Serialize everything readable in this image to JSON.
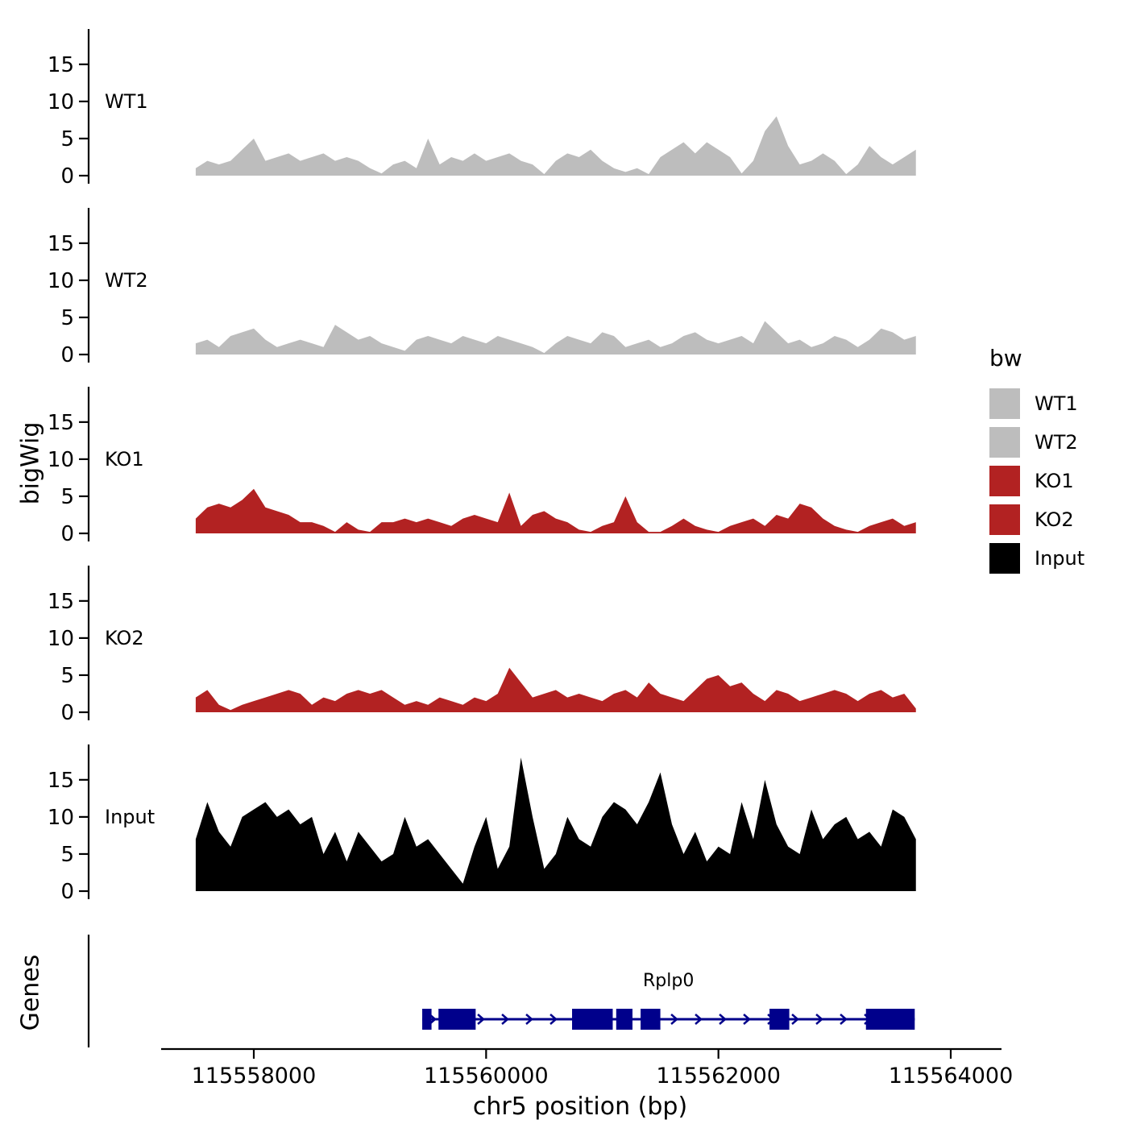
{
  "figure": {
    "y_axis_title": "bigWig",
    "genes_axis_title": "Genes",
    "legend": {
      "title": "bw",
      "entries": [
        {
          "label": "WT1",
          "color": "#BDBDBD"
        },
        {
          "label": "WT2",
          "color": "#BDBDBD"
        },
        {
          "label": "KO1",
          "color": "#B22222"
        },
        {
          "label": "KO2",
          "color": "#B22222"
        },
        {
          "label": "Input",
          "color": "#000000"
        }
      ]
    }
  },
  "chart_data": {
    "type": "area",
    "title": "",
    "xlabel": "chr5 position (bp)",
    "ylabel": "bigWig",
    "legend_position": "right",
    "grid": false,
    "x_axis": {
      "domain": [
        115556600,
        115564200
      ],
      "ticks": [
        115558000,
        115560000,
        115562000,
        115564000
      ],
      "tick_labels": [
        "115558000",
        "115560000",
        "115562000",
        "115564000"
      ]
    },
    "y_axis": {
      "domain": [
        0,
        19
      ],
      "ticks": [
        0,
        5,
        10,
        15
      ],
      "tick_labels": [
        "0",
        "5",
        "10",
        "15"
      ]
    },
    "x_start": 115557500,
    "x_step": 100,
    "series": [
      {
        "name": "WT1",
        "color": "#BDBDBD",
        "values": [
          1,
          2,
          1.5,
          2,
          3.5,
          5,
          2,
          2.5,
          3,
          2,
          2.5,
          3,
          2,
          2.5,
          2,
          1,
          0.3,
          1.5,
          2,
          1,
          5,
          1.5,
          2.5,
          2,
          3,
          2,
          2.5,
          3,
          2,
          1.5,
          0.2,
          2,
          3,
          2.5,
          3.5,
          2,
          1,
          0.5,
          1,
          0.2,
          2.5,
          3.5,
          4.5,
          3,
          4.5,
          3.5,
          2.5,
          0.3,
          2,
          6,
          8,
          4,
          1.5,
          2,
          3,
          2,
          0.2,
          1.5,
          4,
          2.5,
          1.5,
          2.5,
          3.5
        ]
      },
      {
        "name": "WT2",
        "color": "#BDBDBD",
        "values": [
          1.5,
          2,
          1,
          2.5,
          3,
          3.5,
          2,
          1,
          1.5,
          2,
          1.5,
          1,
          4,
          3,
          2,
          2.5,
          1.5,
          1,
          0.5,
          2,
          2.5,
          2,
          1.5,
          2.5,
          2,
          1.5,
          2.5,
          2,
          1.5,
          1,
          0.2,
          1.5,
          2.5,
          2,
          1.5,
          3,
          2.5,
          1,
          1.5,
          2,
          1,
          1.5,
          2.5,
          3,
          2,
          1.5,
          2,
          2.5,
          1.5,
          4.5,
          3,
          1.5,
          2,
          1,
          1.5,
          2.5,
          2,
          1,
          2,
          3.5,
          3,
          2,
          2.5
        ]
      },
      {
        "name": "KO1",
        "color": "#B22222",
        "values": [
          2,
          3.5,
          4,
          3.5,
          4.5,
          6,
          3.5,
          3,
          2.5,
          1.5,
          1.5,
          1,
          0.2,
          1.5,
          0.5,
          0.2,
          1.5,
          1.5,
          2,
          1.5,
          2,
          1.5,
          1,
          2,
          2.5,
          2,
          1.5,
          5.5,
          1,
          2.5,
          3,
          2,
          1.5,
          0.5,
          0.2,
          1,
          1.5,
          5,
          1.5,
          0.2,
          0.2,
          1,
          2,
          1,
          0.5,
          0.2,
          1,
          1.5,
          2,
          1,
          2.5,
          2,
          4,
          3.5,
          2,
          1,
          0.5,
          0.2,
          1,
          1.5,
          2,
          1,
          1.5
        ]
      },
      {
        "name": "KO2",
        "color": "#B22222",
        "values": [
          2,
          3,
          1,
          0.3,
          1,
          1.5,
          2,
          2.5,
          3,
          2.5,
          1,
          2,
          1.5,
          2.5,
          3,
          2.5,
          3,
          2,
          1,
          1.5,
          1,
          2,
          1.5,
          1,
          2,
          1.5,
          2.5,
          6,
          4,
          2,
          2.5,
          3,
          2,
          2.5,
          2,
          1.5,
          2.5,
          3,
          2,
          4,
          2.5,
          2,
          1.5,
          3,
          4.5,
          5,
          3.5,
          4,
          2.5,
          1.5,
          3,
          2.5,
          1.5,
          2,
          2.5,
          3,
          2.5,
          1.5,
          2.5,
          3,
          2,
          2.5,
          0.5
        ]
      },
      {
        "name": "Input",
        "color": "#000000",
        "values": [
          7,
          12,
          8,
          6,
          10,
          11,
          12,
          10,
          11,
          9,
          10,
          5,
          8,
          4,
          8,
          6,
          4,
          5,
          10,
          6,
          7,
          5,
          3,
          1,
          6,
          10,
          3,
          6,
          18,
          10,
          3,
          5,
          10,
          7,
          6,
          10,
          12,
          11,
          9,
          12,
          16,
          9,
          5,
          8,
          4,
          6,
          5,
          12,
          7,
          15,
          9,
          6,
          5,
          11,
          7,
          9,
          10,
          7,
          8,
          6,
          11,
          10,
          7
        ]
      }
    ],
    "gene_track": {
      "panel_label": "Genes",
      "gene_name": "Rplp0",
      "strand": "+",
      "color": "#00008B",
      "start": 115559450,
      "end": 115563690,
      "exons": [
        [
          115559450,
          115559530
        ],
        [
          115559590,
          115559910
        ],
        [
          115560740,
          115561090
        ],
        [
          115561120,
          115561260
        ],
        [
          115561330,
          115561500
        ],
        [
          115562440,
          115562610
        ],
        [
          115563270,
          115563690
        ]
      ]
    }
  }
}
